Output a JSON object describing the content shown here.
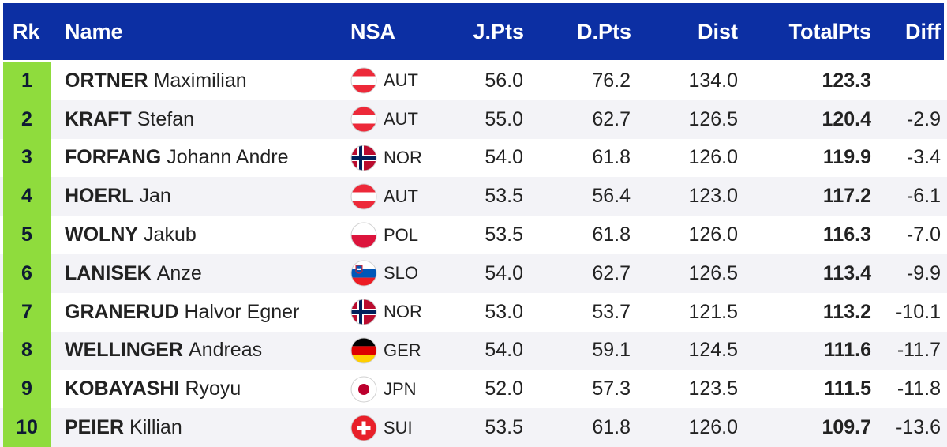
{
  "header": {
    "rk": "Rk",
    "name": "Name",
    "nsa": "NSA",
    "jpts": "J.Pts",
    "dpts": "D.Pts",
    "dist": "Dist",
    "total_line1": "Total",
    "total_line2": "Pts",
    "diff": "Diff"
  },
  "colors": {
    "header_bg": "#0c2fa3",
    "rank_bg": "#8fdc3d",
    "alt_row_bg": "#f3f3f7"
  },
  "rows": [
    {
      "rk": "1",
      "surname": "ORTNER",
      "given": "Maximilian",
      "nsa": "AUT",
      "flag": "austria-flag-icon",
      "jpts": "56.0",
      "dpts": "76.2",
      "dist": "134.0",
      "total": "123.3",
      "diff": ""
    },
    {
      "rk": "2",
      "surname": "KRAFT",
      "given": "Stefan",
      "nsa": "AUT",
      "flag": "austria-flag-icon",
      "jpts": "55.0",
      "dpts": "62.7",
      "dist": "126.5",
      "total": "120.4",
      "diff": "-2.9"
    },
    {
      "rk": "3",
      "surname": "FORFANG",
      "given": "Johann Andre",
      "nsa": "NOR",
      "flag": "norway-flag-icon",
      "jpts": "54.0",
      "dpts": "61.8",
      "dist": "126.0",
      "total": "119.9",
      "diff": "-3.4"
    },
    {
      "rk": "4",
      "surname": "HOERL",
      "given": "Jan",
      "nsa": "AUT",
      "flag": "austria-flag-icon",
      "jpts": "53.5",
      "dpts": "56.4",
      "dist": "123.0",
      "total": "117.2",
      "diff": "-6.1"
    },
    {
      "rk": "5",
      "surname": "WOLNY",
      "given": "Jakub",
      "nsa": "POL",
      "flag": "poland-flag-icon",
      "jpts": "53.5",
      "dpts": "61.8",
      "dist": "126.0",
      "total": "116.3",
      "diff": "-7.0"
    },
    {
      "rk": "6",
      "surname": "LANISEK",
      "given": "Anze",
      "nsa": "SLO",
      "flag": "slovenia-flag-icon",
      "jpts": "54.0",
      "dpts": "62.7",
      "dist": "126.5",
      "total": "113.4",
      "diff": "-9.9"
    },
    {
      "rk": "7",
      "surname": "GRANERUD",
      "given": "Halvor Egner",
      "nsa": "NOR",
      "flag": "norway-flag-icon",
      "jpts": "53.0",
      "dpts": "53.7",
      "dist": "121.5",
      "total": "113.2",
      "diff": "-10.1"
    },
    {
      "rk": "8",
      "surname": "WELLINGER",
      "given": "Andreas",
      "nsa": "GER",
      "flag": "germany-flag-icon",
      "jpts": "54.0",
      "dpts": "59.1",
      "dist": "124.5",
      "total": "111.6",
      "diff": "-11.7"
    },
    {
      "rk": "9",
      "surname": "KOBAYASHI",
      "given": "Ryoyu",
      "nsa": "JPN",
      "flag": "japan-flag-icon",
      "jpts": "52.0",
      "dpts": "57.3",
      "dist": "123.5",
      "total": "111.5",
      "diff": "-11.8"
    },
    {
      "rk": "10",
      "surname": "PEIER",
      "given": "Killian",
      "nsa": "SUI",
      "flag": "switzerland-flag-icon",
      "jpts": "53.5",
      "dpts": "61.8",
      "dist": "126.0",
      "total": "109.7",
      "diff": "-13.6"
    }
  ]
}
